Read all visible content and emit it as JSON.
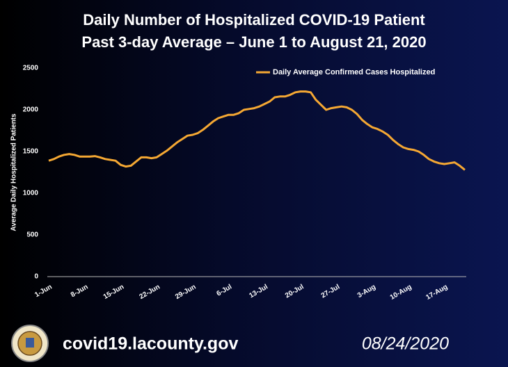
{
  "chart_data": {
    "type": "line",
    "title": "Daily Number of Hospitalized COVID-19 Patient",
    "subtitle": "Past 3-day Average – June 1 to August 21, 2020",
    "y_label": "Average Daily Hospitalized Patients",
    "categories": [
      "1-Jun",
      null,
      null,
      null,
      null,
      null,
      null,
      "8-Jun",
      null,
      null,
      null,
      null,
      null,
      null,
      "15-Jun",
      null,
      null,
      null,
      null,
      null,
      null,
      "22-Jun",
      null,
      null,
      null,
      null,
      null,
      null,
      "29-Jun",
      null,
      null,
      null,
      null,
      null,
      null,
      "6-Jul",
      null,
      null,
      null,
      null,
      null,
      null,
      "13-Jul",
      null,
      null,
      null,
      null,
      null,
      null,
      "20-Jul",
      null,
      null,
      null,
      null,
      null,
      null,
      "27-Jul",
      null,
      null,
      null,
      null,
      null,
      null,
      "3-Aug",
      null,
      null,
      null,
      null,
      null,
      null,
      "10-Aug",
      null,
      null,
      null,
      null,
      null,
      null,
      "17-Aug",
      null,
      null,
      null,
      null
    ],
    "series": [
      {
        "name": "Daily Average Confirmed Cases Hospitalized",
        "color": "#f5a833",
        "values": [
          1390,
          1410,
          1440,
          1460,
          1470,
          1460,
          1440,
          1440,
          1440,
          1445,
          1430,
          1410,
          1400,
          1390,
          1340,
          1320,
          1330,
          1380,
          1430,
          1430,
          1420,
          1430,
          1470,
          1510,
          1560,
          1610,
          1650,
          1690,
          1700,
          1720,
          1760,
          1810,
          1860,
          1900,
          1920,
          1940,
          1940,
          1960,
          2000,
          2010,
          2020,
          2040,
          2070,
          2100,
          2150,
          2160,
          2160,
          2180,
          2210,
          2220,
          2220,
          2210,
          2120,
          2060,
          2000,
          2020,
          2030,
          2040,
          2030,
          2000,
          1950,
          1880,
          1830,
          1790,
          1770,
          1740,
          1700,
          1640,
          1590,
          1550,
          1530,
          1520,
          1500,
          1460,
          1410,
          1380,
          1360,
          1350,
          1360,
          1370,
          1330,
          1280
        ]
      }
    ],
    "ylim": [
      0,
      2500
    ],
    "yticks": [
      0,
      500,
      1000,
      1500,
      2000,
      2500
    ],
    "grid": false,
    "legend": "top-right"
  },
  "footer": {
    "url": "covid19.lacounty.gov",
    "date": "08/24/2020"
  }
}
